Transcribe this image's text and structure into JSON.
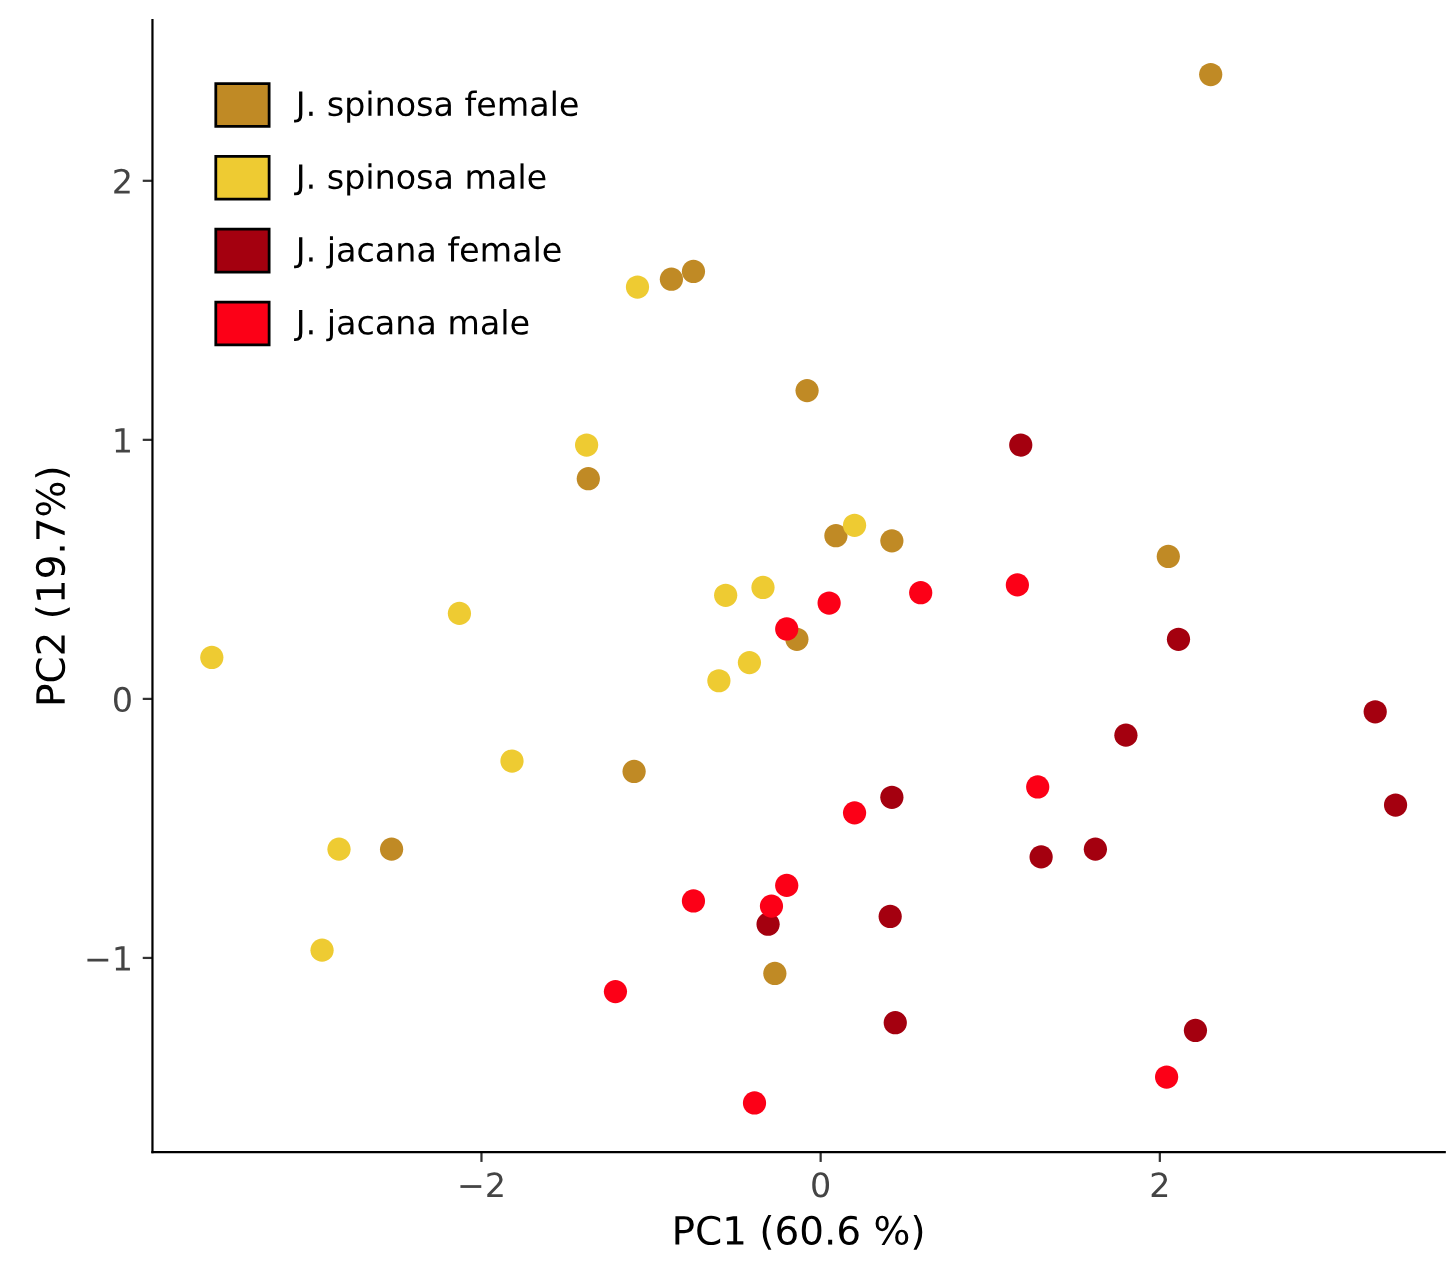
{
  "chart_data": {
    "type": "scatter",
    "xlabel": "PC1 (60.6 %)",
    "ylabel": "PC2 (19.7%)",
    "xlim": [
      -3.94,
      3.68
    ],
    "ylim": [
      -1.75,
      2.62
    ],
    "xticks": [
      {
        "value": -2,
        "label": "−2"
      },
      0,
      2
    ],
    "yticks": [
      {
        "value": -1,
        "label": "−1"
      },
      0,
      1,
      2
    ],
    "grid": false,
    "legend": "top left",
    "marker": "circle",
    "series": [
      {
        "name": "J. spinosa female",
        "color": "#c08a25",
        "x": [
          2.3,
          -0.88,
          -0.75,
          -0.08,
          -1.37,
          0.09,
          0.42,
          2.05,
          -0.14,
          -1.1,
          -2.53,
          -0.27
        ],
        "values": [
          2.41,
          1.62,
          1.65,
          1.19,
          0.85,
          0.63,
          0.61,
          0.55,
          0.23,
          -0.28,
          -0.58,
          -1.06
        ]
      },
      {
        "name": "J. spinosa male",
        "color": "#eecb32",
        "x": [
          -1.08,
          -1.38,
          -3.59,
          -2.13,
          -0.56,
          -0.34,
          -0.42,
          -0.6,
          0.2,
          -1.82,
          -2.84,
          -2.94
        ],
        "values": [
          1.59,
          0.98,
          0.16,
          0.33,
          0.4,
          0.43,
          0.14,
          0.07,
          0.67,
          -0.24,
          -0.58,
          -0.97
        ]
      },
      {
        "name": "J. jacana female",
        "color": "#a4000f",
        "x": [
          1.18,
          2.11,
          3.27,
          1.8,
          3.39,
          0.42,
          1.3,
          1.62,
          0.41,
          -0.31,
          0.44,
          2.21
        ],
        "values": [
          0.98,
          0.23,
          -0.05,
          -0.14,
          -0.41,
          -0.38,
          -0.61,
          -0.58,
          -0.84,
          -0.87,
          -1.25,
          -1.28
        ]
      },
      {
        "name": "J. jacana male",
        "color": "#fc0017",
        "x": [
          0.05,
          0.59,
          1.16,
          -0.2,
          0.2,
          1.28,
          -0.2,
          -0.29,
          -0.75,
          -1.21,
          -0.39,
          2.04
        ],
        "values": [
          0.37,
          0.41,
          0.44,
          0.27,
          -0.44,
          -0.34,
          -0.72,
          -0.8,
          -0.78,
          -1.13,
          -1.56,
          -1.46
        ]
      }
    ]
  }
}
